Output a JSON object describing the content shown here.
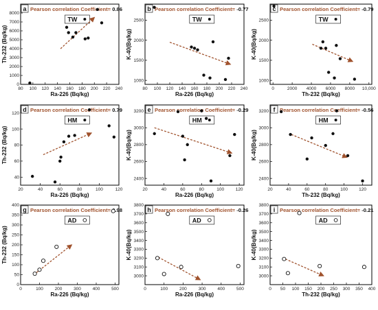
{
  "figure": {
    "corr_label": "Pearson correlation Coefficient=",
    "colors": {
      "arrow": "#a0522d",
      "label_accent": "#a0522d",
      "point": "#111111",
      "frame": "#000000"
    }
  },
  "chart_data": [
    {
      "type": "scatter",
      "letter": "a",
      "group": "TW",
      "marker": "filled",
      "coefficient": "0.86",
      "xlabel": "Ra-226 (Bq/kg)",
      "ylabel": "Th-232 (Bq/kg)",
      "xlim": [
        80,
        240
      ],
      "ylim": [
        0,
        9000
      ],
      "xticks": [
        80,
        100,
        120,
        140,
        160,
        180,
        200,
        220,
        240
      ],
      "yticks": [
        0,
        1000,
        2000,
        3000,
        4000,
        5000,
        6000,
        7000,
        8000
      ],
      "points": [
        [
          95,
          150
        ],
        [
          155,
          6400
        ],
        [
          158,
          5800
        ],
        [
          165,
          5300
        ],
        [
          170,
          5800
        ],
        [
          185,
          5100
        ],
        [
          190,
          5200
        ],
        [
          205,
          8400
        ],
        [
          212,
          6900
        ]
      ],
      "trend": [
        [
          145,
          4000
        ],
        [
          200,
          7500
        ]
      ]
    },
    {
      "type": "scatter",
      "letter": "b",
      "group": "TW",
      "marker": "filled",
      "coefficient": "-0.77",
      "xlabel": "Ra-226 (Bq/kg)",
      "ylabel": "K-40(Bq/kg)",
      "xlim": [
        80,
        240
      ],
      "ylim": [
        900,
        2900
      ],
      "xticks": [
        80,
        100,
        120,
        140,
        160,
        180,
        200,
        220,
        240
      ],
      "yticks": [
        1000,
        1500,
        2000,
        2500
      ],
      "points": [
        [
          95,
          2820
        ],
        [
          155,
          1830
        ],
        [
          160,
          1800
        ],
        [
          165,
          1760
        ],
        [
          175,
          1130
        ],
        [
          185,
          1060
        ],
        [
          190,
          1960
        ],
        [
          210,
          1020
        ],
        [
          215,
          1550
        ]
      ],
      "trend": [
        [
          120,
          1950
        ],
        [
          218,
          1400
        ]
      ]
    },
    {
      "type": "scatter",
      "letter": "c",
      "group": "TW",
      "marker": "filled",
      "coefficient": "-0.79",
      "xlabel": "Th-232 (Bq/kg)",
      "ylabel": "K-40(Bq/kg)",
      "xlim": [
        -300,
        10300
      ],
      "ylim": [
        900,
        2900
      ],
      "xticks": [
        0,
        2000,
        4000,
        6000,
        8000,
        10000
      ],
      "xticklabels": [
        "0",
        "2000",
        "4000",
        "6000",
        "8000",
        "10,000"
      ],
      "yticks": [
        1000,
        1500,
        2000,
        2500
      ],
      "points": [
        [
          100,
          2850
        ],
        [
          5000,
          1800
        ],
        [
          5200,
          1960
        ],
        [
          5500,
          1800
        ],
        [
          5800,
          1200
        ],
        [
          6400,
          1060
        ],
        [
          6600,
          1870
        ],
        [
          7000,
          1540
        ],
        [
          8500,
          1030
        ]
      ],
      "trend": [
        [
          4100,
          1900
        ],
        [
          8300,
          1470
        ]
      ]
    },
    {
      "type": "scatter",
      "letter": "d",
      "group": "HM",
      "marker": "filled",
      "coefficient": "0.79",
      "xlabel": "Ra-226 (Bq/kg)",
      "ylabel": "Th-232 (Bq/kg)",
      "xlim": [
        20,
        120
      ],
      "ylim": [
        30,
        130
      ],
      "xticks": [
        20,
        40,
        60,
        80,
        100,
        120
      ],
      "yticks": [
        40,
        60,
        80,
        100,
        120
      ],
      "points": [
        [
          32,
          41
        ],
        [
          55,
          34
        ],
        [
          60,
          60
        ],
        [
          61,
          65
        ],
        [
          64,
          84
        ],
        [
          69,
          91
        ],
        [
          75,
          92
        ],
        [
          90,
          124
        ],
        [
          110,
          104
        ],
        [
          115,
          90
        ]
      ],
      "trend": [
        [
          43,
          68
        ],
        [
          92,
          95
        ]
      ]
    },
    {
      "type": "scatter",
      "letter": "e",
      "group": "HM",
      "marker": "filled",
      "coefficient": "-0.29",
      "xlabel": "Ra-226 (Bq/kg)",
      "ylabel": "K-40(Bq/kg)",
      "xlim": [
        20,
        125
      ],
      "ylim": [
        2320,
        3270
      ],
      "xticks": [
        20,
        40,
        60,
        80,
        100,
        120
      ],
      "yticks": [
        2400,
        2600,
        2800,
        3000,
        3200
      ],
      "points": [
        [
          30,
          2930
        ],
        [
          55,
          3190
        ],
        [
          60,
          2900
        ],
        [
          62,
          2620
        ],
        [
          65,
          2800
        ],
        [
          80,
          3200
        ],
        [
          85,
          3110
        ],
        [
          90,
          2370
        ],
        [
          110,
          2670
        ],
        [
          115,
          2920
        ]
      ],
      "trend": [
        [
          30,
          3000
        ],
        [
          112,
          2700
        ]
      ]
    },
    {
      "type": "scatter",
      "letter": "f",
      "group": "HM",
      "marker": "filled",
      "coefficient": "-0.56",
      "xlabel": "Th-232 (Bq/kg)",
      "ylabel": "K-40(Bq/kg)",
      "xlim": [
        20,
        130
      ],
      "ylim": [
        2320,
        3270
      ],
      "xticks": [
        20,
        40,
        60,
        80,
        100,
        120
      ],
      "yticks": [
        2400,
        2600,
        2800,
        3000,
        3200
      ],
      "points": [
        [
          32,
          3190
        ],
        [
          42,
          2920
        ],
        [
          60,
          2630
        ],
        [
          65,
          2880
        ],
        [
          80,
          2790
        ],
        [
          88,
          2930
        ],
        [
          92,
          3200
        ],
        [
          104,
          2670
        ],
        [
          120,
          2370
        ]
      ],
      "trend": [
        [
          43,
          2920
        ],
        [
          103,
          2650
        ]
      ]
    },
    {
      "type": "scatter",
      "letter": "g",
      "group": "AD",
      "marker": "hollow",
      "coefficient": "0.98",
      "xlabel": "Ra-226 (Bq/kg)",
      "ylabel": "Th-232 (Bq/kg)",
      "xlim": [
        0,
        520
      ],
      "ylim": [
        0,
        400
      ],
      "xticks": [
        0,
        100,
        200,
        300,
        400,
        500
      ],
      "yticks": [
        0,
        50,
        100,
        150,
        200,
        250,
        300,
        350,
        400
      ],
      "points": [
        [
          75,
          55
        ],
        [
          100,
          75
        ],
        [
          120,
          120
        ],
        [
          190,
          190
        ],
        [
          490,
          370
        ]
      ],
      "trend": [
        [
          70,
          50
        ],
        [
          270,
          200
        ]
      ]
    },
    {
      "type": "scatter",
      "letter": "h",
      "group": "AD",
      "marker": "hollow",
      "coefficient": "-0.26",
      "xlabel": "Ra-226 (Bq/kg)",
      "ylabel": "K-40(Bq/kg)",
      "xlim": [
        0,
        520
      ],
      "ylim": [
        2900,
        3800
      ],
      "xticks": [
        0,
        100,
        200,
        300,
        400,
        500
      ],
      "yticks": [
        3000,
        3100,
        3200,
        3300,
        3400,
        3500,
        3600,
        3700,
        3800
      ],
      "points": [
        [
          65,
          3200
        ],
        [
          100,
          3020
        ],
        [
          120,
          3700
        ],
        [
          190,
          3100
        ],
        [
          490,
          3110
        ]
      ],
      "trend": [
        [
          70,
          3210
        ],
        [
          290,
          2955
        ]
      ]
    },
    {
      "type": "scatter",
      "letter": "i",
      "group": "AD",
      "marker": "hollow",
      "coefficient": "-0.21",
      "xlabel": "Th-232 (Bq/kg)",
      "ylabel": "K-40(Bq/kg)",
      "xlim": [
        0,
        400
      ],
      "ylim": [
        2900,
        3800
      ],
      "xticks": [
        0,
        50,
        100,
        150,
        200,
        250,
        300,
        350,
        400
      ],
      "yticks": [
        3000,
        3100,
        3200,
        3300,
        3400,
        3500,
        3600,
        3700,
        3800
      ],
      "points": [
        [
          55,
          3190
        ],
        [
          70,
          3030
        ],
        [
          115,
          3710
        ],
        [
          195,
          3110
        ],
        [
          370,
          3100
        ]
      ],
      "trend": [
        [
          60,
          3190
        ],
        [
          210,
          3000
        ]
      ]
    }
  ]
}
